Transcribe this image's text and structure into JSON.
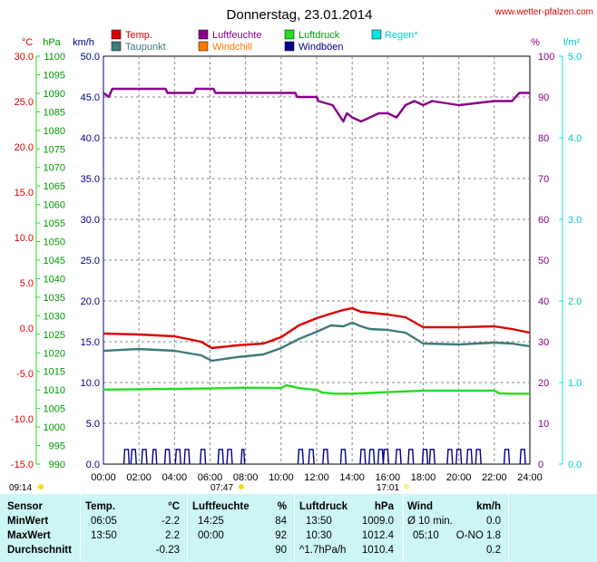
{
  "title": "Donnerstag, 23.01.2014",
  "website": "www.wetter-pfalzen.com",
  "legend": [
    {
      "label": "Temp.",
      "color": "#dd0000"
    },
    {
      "label": "Luftfeuchte",
      "color": "#880088"
    },
    {
      "label": "Luftdruck",
      "color": "#22dd22"
    },
    {
      "label": "Regen*",
      "color": "#00e5e5"
    },
    {
      "label": "Taupunkt",
      "color": "#3f7a7a"
    },
    {
      "label": "Windchill",
      "color": "#ff7700"
    },
    {
      "label": "Windböen",
      "color": "#000088"
    }
  ],
  "axis_units": {
    "temp": "°C",
    "pressure": "hPa",
    "wind": "km/h",
    "humidity": "%",
    "rain": "l/m²"
  },
  "sun": {
    "sunrise_icon": "sun-icon",
    "rise_label": "09:14",
    "sunrise": "07:47",
    "sunset": "17:01"
  },
  "chart_data": {
    "type": "line",
    "title": "Donnerstag, 23.01.2014",
    "x_label_ticks": [
      "00:00",
      "02:00",
      "04:00",
      "06:00",
      "08:00",
      "10:00",
      "12:00",
      "14:00",
      "16:00",
      "18:00",
      "20:00",
      "22:00",
      "24:00"
    ],
    "xlim": [
      0,
      24
    ],
    "axes": {
      "temp": {
        "unit": "°C",
        "ylim": [
          -15,
          30
        ],
        "ticks": [
          "30.0",
          "25.0",
          "20.0",
          "15.0",
          "10.0",
          "5.0",
          "0.0",
          "-5.0",
          "-10.0",
          "-15.0"
        ]
      },
      "pressure": {
        "unit": "hPa",
        "ylim": [
          990,
          1100
        ],
        "ticks": [
          "1100",
          "1095",
          "1090",
          "1085",
          "1080",
          "1075",
          "1070",
          "1065",
          "1060",
          "1055",
          "1050",
          "1045",
          "1040",
          "1035",
          "1030",
          "1025",
          "1020",
          "1015",
          "1010",
          "1005",
          "1000",
          "995",
          "990"
        ]
      },
      "wind": {
        "unit": "km/h",
        "ylim": [
          0,
          50
        ],
        "ticks": [
          "50.0",
          "45.0",
          "40.0",
          "35.0",
          "30.0",
          "25.0",
          "20.0",
          "15.0",
          "10.0",
          "5.0",
          "0.0"
        ]
      },
      "humidity": {
        "unit": "%",
        "ylim": [
          0,
          100
        ],
        "ticks": [
          "100",
          "90",
          "80",
          "70",
          "60",
          "50",
          "40",
          "30",
          "20",
          "10",
          "0"
        ]
      },
      "rain": {
        "unit": "l/m²",
        "ylim": [
          0,
          5
        ],
        "ticks": [
          "5.0",
          "4.0",
          "3.0",
          "2.0",
          "1.0",
          "0.0"
        ]
      }
    },
    "series": [
      {
        "name": "Luftfeuchte",
        "axis": "humidity",
        "color": "#880088",
        "x": [
          0,
          0.3,
          0.5,
          3.5,
          3.6,
          5.1,
          5.2,
          6.2,
          6.3,
          10.8,
          10.9,
          12.0,
          12.1,
          12.9,
          13.2,
          13.5,
          13.7,
          14.0,
          14.5,
          15.0,
          15.5,
          16.0,
          16.5,
          17.0,
          17.5,
          18.0,
          18.5,
          20.0,
          22.0,
          23.0,
          23.4,
          24.0
        ],
        "y": [
          91,
          90,
          92,
          92,
          91,
          91,
          92,
          92,
          91,
          91,
          90,
          90,
          89,
          88,
          86,
          84,
          86,
          85,
          84,
          85,
          86,
          86,
          85,
          88,
          89,
          88,
          89,
          88,
          89,
          89,
          91,
          91
        ]
      },
      {
        "name": "Temp.",
        "axis": "temp",
        "color": "#dd0000",
        "x": [
          0,
          2,
          4,
          5.5,
          6.1,
          7.5,
          9.0,
          10.0,
          11.0,
          12.0,
          12.8,
          13.5,
          14.0,
          14.5,
          15.0,
          16.0,
          17.0,
          18.0,
          20.0,
          22.0,
          23.0,
          24.0
        ],
        "y": [
          -0.6,
          -0.7,
          -0.9,
          -1.5,
          -2.2,
          -1.9,
          -1.7,
          -1.0,
          0.3,
          1.1,
          1.6,
          2.0,
          2.2,
          1.8,
          1.7,
          1.5,
          1.2,
          0.1,
          0.1,
          0.2,
          -0.1,
          -0.5
        ]
      },
      {
        "name": "Taupunkt",
        "axis": "temp",
        "color": "#3f7a7a",
        "x": [
          0,
          2,
          4,
          5.5,
          6.1,
          7.5,
          9.0,
          10.0,
          11.0,
          12.0,
          12.8,
          13.5,
          14.0,
          14.5,
          15.0,
          16.0,
          17.0,
          18.0,
          20.0,
          22.0,
          23.0,
          24.0
        ],
        "y": [
          -2.5,
          -2.3,
          -2.5,
          -3.0,
          -3.6,
          -3.2,
          -2.9,
          -2.2,
          -1.2,
          -0.4,
          0.3,
          0.2,
          0.6,
          0.2,
          -0.1,
          -0.2,
          -0.5,
          -1.7,
          -1.8,
          -1.6,
          -1.7,
          -2.0
        ]
      },
      {
        "name": "Luftdruck",
        "axis": "pressure",
        "color": "#22dd22",
        "x": [
          0,
          2,
          4,
          6,
          8,
          10,
          10.3,
          11,
          12,
          12.3,
          13,
          14,
          15,
          16,
          17,
          18,
          20,
          22,
          22.3,
          23,
          24
        ],
        "y": [
          1010.1,
          1010.2,
          1010.3,
          1010.4,
          1010.6,
          1010.5,
          1011.3,
          1010.5,
          1010.0,
          1009.3,
          1009.0,
          1009.0,
          1009.2,
          1009.4,
          1009.6,
          1009.8,
          1009.8,
          1009.8,
          1009.1,
          1009.0,
          1009.0
        ]
      },
      {
        "name": "Windböen",
        "axis": "wind",
        "color": "#000088",
        "segments": [
          [
            1.2,
            1.4
          ],
          [
            1.6,
            1.8
          ],
          [
            2.2,
            2.4
          ],
          [
            2.8,
            2.95
          ],
          [
            3.5,
            3.7
          ],
          [
            4.1,
            4.3
          ],
          [
            4.6,
            4.8
          ],
          [
            5.5,
            5.7
          ],
          [
            6.5,
            6.7
          ],
          [
            7.0,
            7.2
          ],
          [
            7.8,
            7.9
          ],
          [
            11.0,
            11.2
          ],
          [
            11.6,
            11.8
          ],
          [
            12.4,
            12.6
          ],
          [
            13.4,
            13.6
          ],
          [
            14.5,
            14.7
          ],
          [
            15.0,
            15.2
          ],
          [
            15.5,
            15.7
          ],
          [
            15.8,
            16.0
          ],
          [
            16.5,
            16.7
          ],
          [
            17.2,
            17.4
          ],
          [
            18.0,
            18.2
          ],
          [
            18.4,
            18.6
          ],
          [
            19.4,
            19.6
          ],
          [
            19.9,
            20.1
          ],
          [
            20.5,
            20.7
          ],
          [
            21.0,
            21.2
          ],
          [
            22.6,
            22.8
          ],
          [
            23.5,
            23.7
          ]
        ],
        "peak": 1.8
      }
    ]
  },
  "stats": {
    "headers": {
      "sensor": "Sensor",
      "temp": "Temp.",
      "temp_unit": "°C",
      "hum": "Luftfeuchte",
      "hum_unit": "%",
      "press": "Luftdruck",
      "press_unit": "hPa",
      "wind": "Wind",
      "wind_unit": "km/h"
    },
    "rows": [
      {
        "label": "MinWert",
        "temp_time": "06:05",
        "temp_val": "-2.2",
        "hum_time": "14:25",
        "hum_val": "84",
        "press_time": "13:50",
        "press_val": "1009.0",
        "wind_time": "Ø 10 min.",
        "wind_val": "0.0"
      },
      {
        "label": "MaxWert",
        "temp_time": "13:50",
        "temp_val": "2.2",
        "hum_time": "00:00",
        "hum_val": "92",
        "press_time": "10:30",
        "press_val": "1012.4",
        "wind_time": "05:10",
        "wind_val": "O-NO 1.8"
      },
      {
        "label": "Durchschnitt",
        "temp_time": "",
        "temp_val": "-0.23",
        "hum_time": "",
        "hum_val": "90",
        "press_time": "^1.7hPa/h",
        "press_val": "1010.4",
        "wind_time": "",
        "wind_val": "0.2"
      }
    ]
  }
}
